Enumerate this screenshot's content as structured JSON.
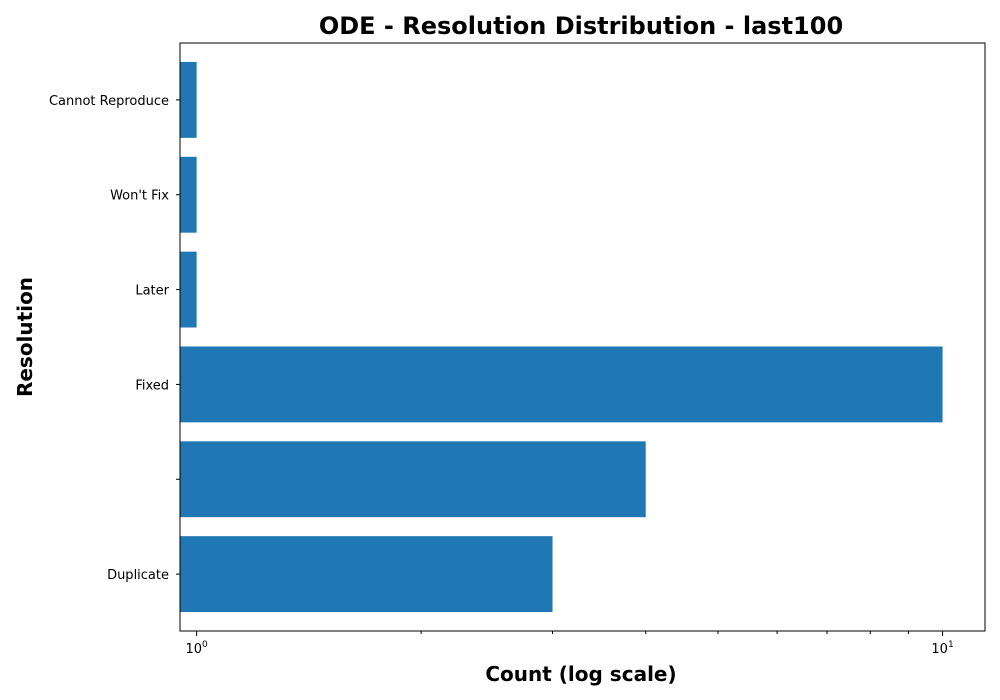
{
  "chart_data": {
    "type": "bar",
    "orientation": "horizontal",
    "title": "ODE - Resolution Distribution - last100",
    "xlabel": "Count (log scale)",
    "ylabel": "Resolution",
    "xscale": "log",
    "xlim": [
      0.95,
      11.4
    ],
    "categories": [
      "Duplicate",
      "",
      "Fixed",
      "Later",
      "Won't Fix",
      "Cannot Reproduce"
    ],
    "values": [
      3,
      4,
      10,
      1,
      1,
      1
    ],
    "x_ticks": [
      {
        "value": 1,
        "base": "10",
        "exp": "0"
      },
      {
        "value": 10,
        "base": "10",
        "exp": "1"
      }
    ],
    "grid": false,
    "bar_color": "#1f77b4"
  }
}
